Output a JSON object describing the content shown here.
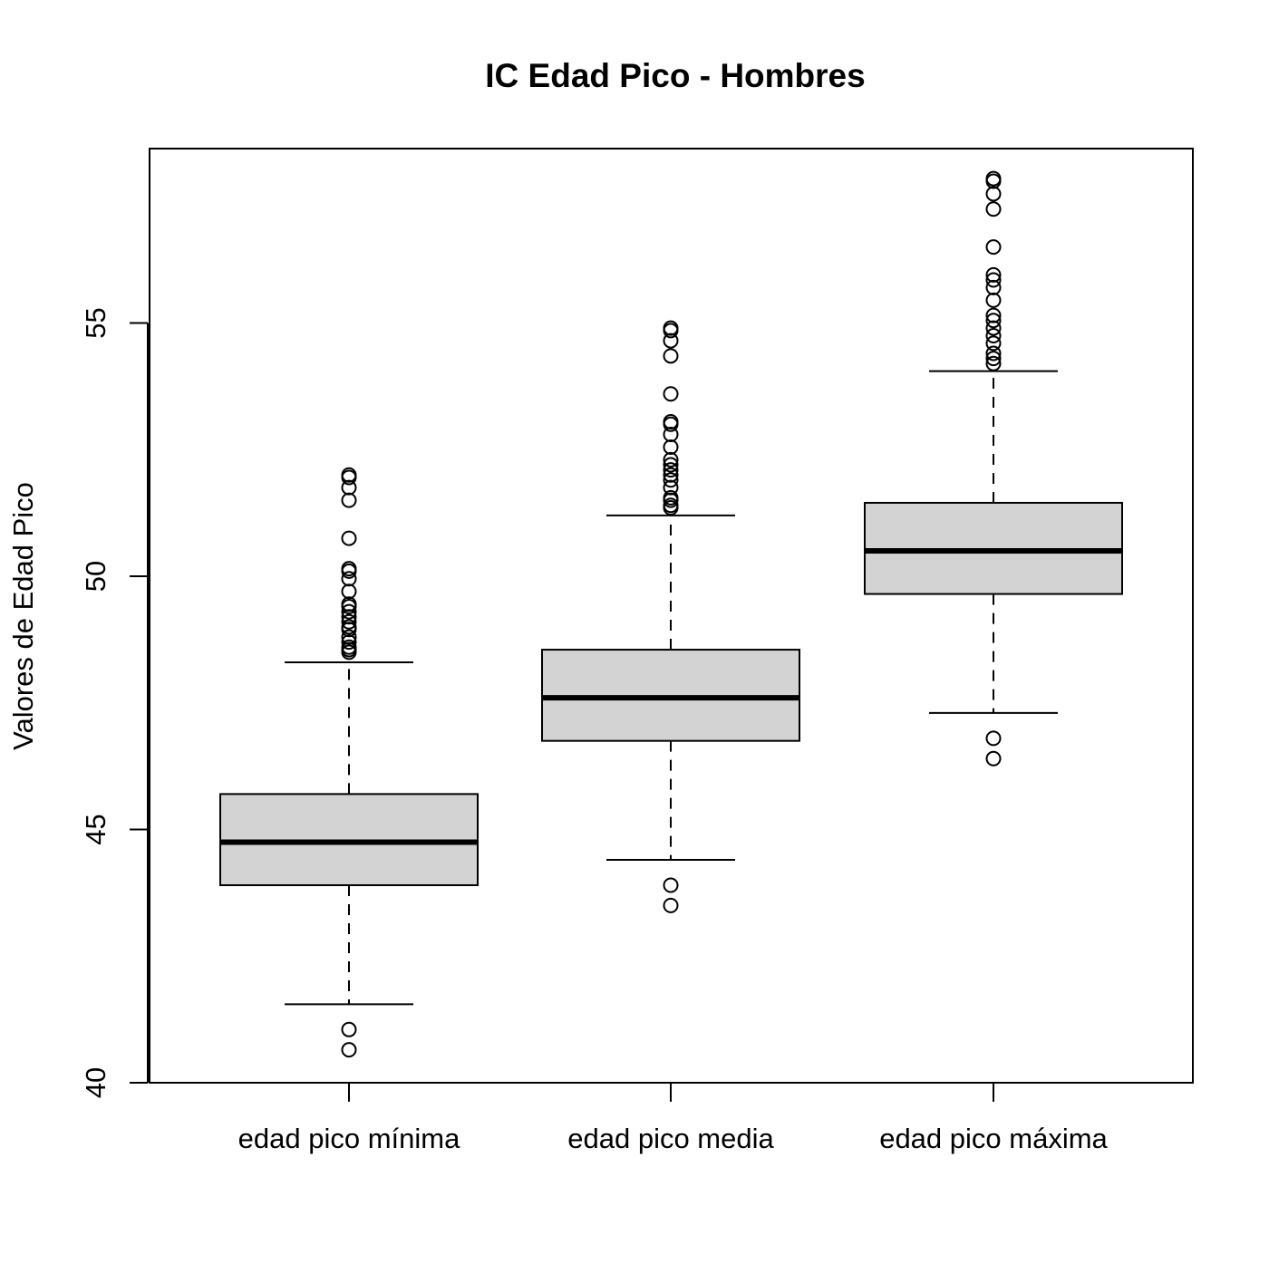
{
  "chart_data": {
    "type": "boxplot",
    "title": "IC Edad Pico - Hombres",
    "xlabel": "",
    "ylabel": "Valores de Edad Pico",
    "ylim": [
      40,
      58.5
    ],
    "yticks": [
      40,
      45,
      50,
      55
    ],
    "grid": false,
    "box_fill": "#d3d3d3",
    "line_color": "#000000",
    "categories": [
      "edad pico mínima",
      "edad pico media",
      "edad pico máxima"
    ],
    "boxes": [
      {
        "category": "edad pico mínima",
        "whisker_low": 41.55,
        "q1": 43.9,
        "median": 44.75,
        "q3": 45.7,
        "whisker_high": 48.3,
        "outliers": [
          40.65,
          41.05,
          48.5,
          48.55,
          48.6,
          48.7,
          48.8,
          48.95,
          49.0,
          49.1,
          49.2,
          49.3,
          49.4,
          49.45,
          49.7,
          49.95,
          50.1,
          50.15,
          50.75,
          51.5,
          51.75,
          51.95,
          52.0
        ]
      },
      {
        "category": "edad pico media",
        "whisker_low": 44.4,
        "q1": 46.75,
        "median": 47.6,
        "q3": 48.55,
        "whisker_high": 51.2,
        "outliers": [
          43.5,
          43.9,
          51.35,
          51.4,
          51.5,
          51.55,
          51.75,
          51.9,
          52.0,
          52.1,
          52.2,
          52.3,
          52.55,
          52.8,
          53.0,
          53.05,
          53.6,
          54.35,
          54.65,
          54.85,
          54.9
        ]
      },
      {
        "category": "edad pico máxima",
        "whisker_low": 47.3,
        "q1": 49.65,
        "median": 50.5,
        "q3": 51.45,
        "whisker_high": 54.05,
        "outliers": [
          46.4,
          46.8,
          54.2,
          54.3,
          54.4,
          54.6,
          54.75,
          54.9,
          55.05,
          55.15,
          55.45,
          55.7,
          55.85,
          55.95,
          56.5,
          57.25,
          57.55,
          57.8,
          57.85
        ]
      }
    ]
  }
}
